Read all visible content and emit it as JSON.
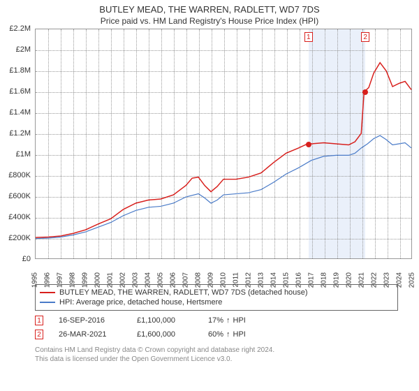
{
  "title": "BUTLEY MEAD, THE WARREN, RADLETT, WD7 7DS",
  "subtitle": "Price paid vs. HM Land Registry's House Price Index (HPI)",
  "chart": {
    "type": "line",
    "background_color": "#ffffff",
    "grid_color": "#999999",
    "plot_border_color": "#999999",
    "x": {
      "min": 1995,
      "max": 2025,
      "tick_step": 1,
      "label_fontsize": 10
    },
    "y": {
      "min": 0,
      "max": 2200000,
      "tick_step": 200000,
      "label_fontsize": 11,
      "format": "gbp_m"
    },
    "band": {
      "from": 2016.71,
      "to": 2021.23,
      "color": "#eaf0fa"
    },
    "series": [
      {
        "id": "price_paid",
        "label": "BUTLEY MEAD, THE WARREN, RADLETT, WD7 7DS (detached house)",
        "color": "#d8201d",
        "line_width": 1.5,
        "data": [
          [
            1995,
            200000
          ],
          [
            1996,
            205000
          ],
          [
            1997,
            215000
          ],
          [
            1998,
            240000
          ],
          [
            1999,
            275000
          ],
          [
            2000,
            330000
          ],
          [
            2001,
            380000
          ],
          [
            2002,
            470000
          ],
          [
            2003,
            530000
          ],
          [
            2004,
            560000
          ],
          [
            2005,
            570000
          ],
          [
            2006,
            610000
          ],
          [
            2007,
            700000
          ],
          [
            2007.5,
            770000
          ],
          [
            2008,
            780000
          ],
          [
            2008.5,
            700000
          ],
          [
            2009,
            640000
          ],
          [
            2009.5,
            690000
          ],
          [
            2010,
            760000
          ],
          [
            2011,
            760000
          ],
          [
            2012,
            780000
          ],
          [
            2013,
            820000
          ],
          [
            2014,
            920000
          ],
          [
            2015,
            1010000
          ],
          [
            2016,
            1060000
          ],
          [
            2016.71,
            1100000
          ],
          [
            2017,
            1100000
          ],
          [
            2018,
            1110000
          ],
          [
            2019,
            1100000
          ],
          [
            2020,
            1090000
          ],
          [
            2020.5,
            1120000
          ],
          [
            2021,
            1200000
          ],
          [
            2021.23,
            1600000
          ],
          [
            2021.6,
            1640000
          ],
          [
            2022,
            1780000
          ],
          [
            2022.5,
            1880000
          ],
          [
            2023,
            1800000
          ],
          [
            2023.5,
            1650000
          ],
          [
            2024,
            1680000
          ],
          [
            2024.5,
            1700000
          ],
          [
            2025,
            1620000
          ]
        ]
      },
      {
        "id": "hpi",
        "label": "HPI: Average price, detached house, Hertsmere",
        "color": "#4a7bc8",
        "line_width": 1.2,
        "data": [
          [
            1995,
            190000
          ],
          [
            1996,
            195000
          ],
          [
            1997,
            205000
          ],
          [
            1998,
            225000
          ],
          [
            1999,
            255000
          ],
          [
            2000,
            300000
          ],
          [
            2001,
            345000
          ],
          [
            2002,
            410000
          ],
          [
            2003,
            460000
          ],
          [
            2004,
            490000
          ],
          [
            2005,
            500000
          ],
          [
            2006,
            530000
          ],
          [
            2007,
            590000
          ],
          [
            2008,
            620000
          ],
          [
            2008.5,
            580000
          ],
          [
            2009,
            530000
          ],
          [
            2009.5,
            560000
          ],
          [
            2010,
            610000
          ],
          [
            2011,
            620000
          ],
          [
            2012,
            630000
          ],
          [
            2013,
            660000
          ],
          [
            2014,
            730000
          ],
          [
            2015,
            810000
          ],
          [
            2016,
            870000
          ],
          [
            2017,
            940000
          ],
          [
            2018,
            980000
          ],
          [
            2019,
            990000
          ],
          [
            2020,
            990000
          ],
          [
            2020.5,
            1010000
          ],
          [
            2021,
            1060000
          ],
          [
            2021.5,
            1100000
          ],
          [
            2022,
            1150000
          ],
          [
            2022.5,
            1180000
          ],
          [
            2023,
            1140000
          ],
          [
            2023.5,
            1090000
          ],
          [
            2024,
            1100000
          ],
          [
            2024.5,
            1110000
          ],
          [
            2025,
            1060000
          ]
        ]
      }
    ],
    "sale_markers": [
      {
        "n": "1",
        "x": 2016.71,
        "y": 1100000,
        "box_color": "#d8201d"
      },
      {
        "n": "2",
        "x": 2021.23,
        "y": 1600000,
        "box_color": "#d8201d"
      }
    ]
  },
  "legend": {
    "border_color": "#666666"
  },
  "sales_table": [
    {
      "n": "1",
      "date": "16-SEP-2016",
      "price": "£1,100,000",
      "diff_pct": "17%",
      "diff_dir": "↑",
      "diff_label": "HPI",
      "box_color": "#d8201d"
    },
    {
      "n": "2",
      "date": "26-MAR-2021",
      "price": "£1,600,000",
      "diff_pct": "60%",
      "diff_dir": "↑",
      "diff_label": "HPI",
      "box_color": "#d8201d"
    }
  ],
  "footer": {
    "line1": "Contains HM Land Registry data © Crown copyright and database right 2024.",
    "line2": "This data is licensed under the Open Government Licence v3.0."
  },
  "y_tick_labels": [
    "£0",
    "£200K",
    "£400K",
    "£600K",
    "£800K",
    "£1M",
    "£1.2M",
    "£1.4M",
    "£1.6M",
    "£1.8M",
    "£2M",
    "£2.2M"
  ]
}
